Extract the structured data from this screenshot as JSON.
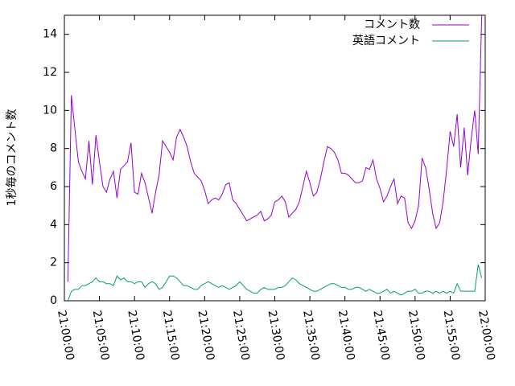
{
  "chart_data": {
    "type": "line",
    "y_label": "1秒毎のコメント数",
    "x": [
      "21:00:30",
      "21:01:00",
      "21:01:30",
      "21:02:00",
      "21:02:30",
      "21:03:00",
      "21:03:30",
      "21:04:00",
      "21:04:30",
      "21:05:00",
      "21:05:30",
      "21:06:00",
      "21:06:30",
      "21:07:00",
      "21:07:30",
      "21:08:00",
      "21:08:30",
      "21:09:00",
      "21:09:30",
      "21:10:00",
      "21:10:30",
      "21:11:00",
      "21:11:30",
      "21:12:00",
      "21:12:30",
      "21:13:00",
      "21:13:30",
      "21:14:00",
      "21:14:30",
      "21:15:00",
      "21:15:30",
      "21:16:00",
      "21:16:30",
      "21:17:00",
      "21:17:30",
      "21:18:00",
      "21:18:30",
      "21:19:00",
      "21:19:30",
      "21:20:00",
      "21:20:30",
      "21:21:00",
      "21:21:30",
      "21:22:00",
      "21:22:30",
      "21:23:00",
      "21:23:30",
      "21:24:00",
      "21:24:30",
      "21:25:00",
      "21:25:30",
      "21:26:00",
      "21:26:30",
      "21:27:00",
      "21:27:30",
      "21:28:00",
      "21:28:30",
      "21:29:00",
      "21:29:30",
      "21:30:00",
      "21:30:30",
      "21:31:00",
      "21:31:30",
      "21:32:00",
      "21:32:30",
      "21:33:00",
      "21:33:30",
      "21:34:00",
      "21:34:30",
      "21:35:00",
      "21:35:30",
      "21:36:00",
      "21:36:30",
      "21:37:00",
      "21:37:30",
      "21:38:00",
      "21:38:30",
      "21:39:00",
      "21:39:30",
      "21:40:00",
      "21:40:30",
      "21:41:00",
      "21:41:30",
      "21:42:00",
      "21:42:30",
      "21:43:00",
      "21:43:30",
      "21:44:00",
      "21:44:30",
      "21:45:00",
      "21:45:30",
      "21:46:00",
      "21:46:30",
      "21:47:00",
      "21:47:30",
      "21:48:00",
      "21:48:30",
      "21:49:00",
      "21:49:30",
      "21:50:00",
      "21:50:30",
      "21:51:00",
      "21:51:30",
      "21:52:00",
      "21:52:30",
      "21:53:00",
      "21:53:30",
      "21:54:00",
      "21:54:30",
      "21:55:00",
      "21:55:30",
      "21:56:00",
      "21:56:30",
      "21:57:00",
      "21:57:30",
      "21:58:00",
      "21:58:30",
      "21:59:00",
      "21:59:30"
    ],
    "series": [
      {
        "name": "コメント数",
        "color": "#9400d3",
        "values": [
          1.0,
          10.8,
          9.0,
          7.3,
          6.8,
          6.4,
          8.4,
          6.1,
          8.7,
          7.3,
          6.0,
          5.7,
          6.4,
          6.8,
          5.4,
          6.9,
          7.1,
          7.3,
          8.3,
          5.7,
          5.6,
          6.7,
          6.2,
          5.4,
          4.6,
          5.7,
          6.6,
          8.4,
          8.1,
          7.8,
          7.4,
          8.6,
          9.0,
          8.6,
          8.1,
          7.3,
          6.7,
          6.5,
          6.3,
          5.8,
          5.1,
          5.3,
          5.4,
          5.3,
          5.6,
          6.1,
          6.2,
          5.3,
          5.1,
          4.8,
          4.5,
          4.2,
          4.3,
          4.4,
          4.5,
          4.7,
          4.2,
          4.3,
          4.5,
          5.2,
          5.3,
          5.5,
          5.2,
          4.4,
          4.6,
          4.8,
          5.2,
          6.0,
          6.8,
          6.2,
          5.5,
          5.7,
          6.4,
          7.3,
          8.1,
          8.0,
          7.8,
          7.4,
          6.7,
          6.7,
          6.6,
          6.4,
          6.2,
          6.2,
          6.3,
          7.0,
          6.9,
          7.4,
          6.4,
          5.9,
          5.2,
          5.5,
          6.0,
          6.4,
          5.1,
          5.5,
          5.4,
          4.1,
          3.8,
          4.2,
          5.0,
          7.5,
          7.0,
          5.9,
          4.6,
          3.8,
          4.1,
          5.2,
          6.9,
          8.9,
          8.1,
          9.8,
          7.0,
          9.1,
          6.6,
          8.5,
          10.0,
          7.7,
          15.0
        ]
      },
      {
        "name": "英語コメント",
        "color": "#009e73",
        "values": [
          0.0,
          0.5,
          0.6,
          0.6,
          0.8,
          0.8,
          0.9,
          1.0,
          1.2,
          1.0,
          1.0,
          0.9,
          0.9,
          0.8,
          1.3,
          1.1,
          1.2,
          1.0,
          1.0,
          0.9,
          1.0,
          1.0,
          0.7,
          0.9,
          1.0,
          0.9,
          0.6,
          0.7,
          1.0,
          1.3,
          1.3,
          1.2,
          1.0,
          0.8,
          0.8,
          0.7,
          0.6,
          0.6,
          0.8,
          0.9,
          1.0,
          0.9,
          0.8,
          0.7,
          0.8,
          0.7,
          0.6,
          0.7,
          0.8,
          1.0,
          0.8,
          0.6,
          0.5,
          0.4,
          0.4,
          0.6,
          0.7,
          0.6,
          0.6,
          0.6,
          0.7,
          0.7,
          0.8,
          1.0,
          1.2,
          1.1,
          0.9,
          0.8,
          0.7,
          0.6,
          0.5,
          0.5,
          0.6,
          0.7,
          0.8,
          0.9,
          0.9,
          0.8,
          0.7,
          0.7,
          0.6,
          0.6,
          0.7,
          0.7,
          0.6,
          0.5,
          0.6,
          0.5,
          0.4,
          0.4,
          0.5,
          0.6,
          0.4,
          0.5,
          0.4,
          0.3,
          0.4,
          0.5,
          0.5,
          0.6,
          0.4,
          0.4,
          0.5,
          0.5,
          0.4,
          0.5,
          0.4,
          0.5,
          0.4,
          0.5,
          0.4,
          0.9,
          0.5,
          0.5,
          0.5,
          0.5,
          0.5,
          1.9,
          1.2
        ]
      }
    ],
    "xlim": [
      "21:00:00",
      "22:00:00"
    ],
    "xticks": [
      "21:00:00",
      "21:05:00",
      "21:10:00",
      "21:15:00",
      "21:20:00",
      "21:25:00",
      "21:30:00",
      "21:35:00",
      "21:40:00",
      "21:45:00",
      "21:50:00",
      "21:55:00",
      "22:00:00"
    ],
    "ylim": [
      0,
      15
    ],
    "yticks": [
      0,
      2,
      4,
      6,
      8,
      10,
      12,
      14
    ],
    "legend": "top-right"
  }
}
